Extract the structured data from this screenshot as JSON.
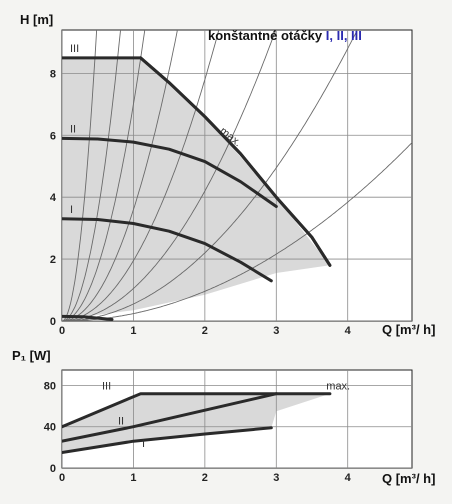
{
  "chart_data": [
    {
      "type": "line",
      "title": "konštantné otáčky",
      "title_suffix": "I, II, III",
      "ylabel": "H [m]",
      "xlabel": "Q [m³/ h]",
      "xlim": [
        0,
        4.9
      ],
      "ylim": [
        0,
        9.4
      ],
      "x_ticks": [
        "0",
        "1",
        "2",
        "3",
        "4"
      ],
      "y_ticks": [
        "0",
        "2",
        "4",
        "6",
        "8"
      ],
      "grid": true,
      "series": [
        {
          "name": "III",
          "x": [
            0,
            0.2,
            0.5,
            1.0,
            1.1,
            1.5,
            2.0,
            2.5,
            3.0,
            3.5,
            3.75
          ],
          "y": [
            8.5,
            8.5,
            8.5,
            8.5,
            8.5,
            7.7,
            6.6,
            5.4,
            4.0,
            2.7,
            1.8
          ]
        },
        {
          "name": "II",
          "x": [
            0,
            0.5,
            1.0,
            1.5,
            2.0,
            2.5,
            3.0
          ],
          "y": [
            5.9,
            5.88,
            5.78,
            5.55,
            5.15,
            4.5,
            3.7
          ]
        },
        {
          "name": "I",
          "x": [
            0,
            0.5,
            1.0,
            1.5,
            2.0,
            2.5,
            2.93
          ],
          "y": [
            3.3,
            3.28,
            3.15,
            2.9,
            2.5,
            1.9,
            1.3
          ]
        },
        {
          "name": "max.",
          "x": [
            1.1,
            1.5,
            2.0,
            2.5,
            3.0,
            3.5,
            3.75
          ],
          "y": [
            8.5,
            7.7,
            6.6,
            5.4,
            4.0,
            2.7,
            1.8
          ]
        },
        {
          "name": "",
          "x": [
            0,
            0.3,
            0.7
          ],
          "y": [
            0.15,
            0.14,
            0.05
          ]
        }
      ],
      "system_curves": [
        {
          "k": 40
        },
        {
          "k": 14
        },
        {
          "k": 7
        },
        {
          "k": 3.6
        },
        {
          "k": 1.95
        },
        {
          "k": 1.05
        },
        {
          "k": 0.55
        },
        {
          "k": 0.24
        }
      ],
      "shaded_region": {
        "upper": [
          [
            0,
            8.5
          ],
          [
            1.1,
            8.5
          ],
          [
            2.0,
            6.6
          ],
          [
            3.0,
            4.0
          ],
          [
            3.75,
            1.8
          ]
        ],
        "lower": [
          [
            3.75,
            1.8
          ],
          [
            3.0,
            1.55
          ],
          [
            2.0,
            0.85
          ],
          [
            1.0,
            0.35
          ],
          [
            0,
            0.05
          ]
        ]
      },
      "max_label": "max."
    },
    {
      "type": "line",
      "ylabel": "P₁ [W]",
      "xlabel": "Q [m³/ h]",
      "xlim": [
        0,
        4.9
      ],
      "ylim": [
        0,
        95
      ],
      "x_ticks": [
        "0",
        "1",
        "2",
        "3",
        "4"
      ],
      "y_ticks": [
        "0",
        "40",
        "80"
      ],
      "grid": true,
      "series": [
        {
          "name": "III",
          "x": [
            0,
            1.1,
            3.0,
            3.75
          ],
          "y": [
            40,
            72,
            72,
            72
          ]
        },
        {
          "name": "II",
          "x": [
            0,
            1.0,
            2.0,
            3.0
          ],
          "y": [
            26,
            40,
            56,
            72
          ]
        },
        {
          "name": "I",
          "x": [
            0,
            1.0,
            2.0,
            2.93
          ],
          "y": [
            15,
            26,
            33,
            39
          ]
        }
      ],
      "shaded_region": {
        "upper": [
          [
            0,
            40
          ],
          [
            1.1,
            72
          ],
          [
            3.75,
            72
          ]
        ],
        "lower": [
          [
            3.75,
            72
          ],
          [
            3.0,
            55
          ],
          [
            2.93,
            39
          ],
          [
            1.0,
            26
          ],
          [
            0,
            15
          ]
        ]
      },
      "max_label": "max."
    }
  ],
  "colors": {
    "curve": "#2a2a2a",
    "system_curve": "#6a6a6a",
    "shade": "#d9d9d9",
    "grid": "#8a8a8a",
    "plot_bg": "#ffffff",
    "page_bg": "#f4f4f2",
    "title_accent": "#2b2bb0"
  }
}
